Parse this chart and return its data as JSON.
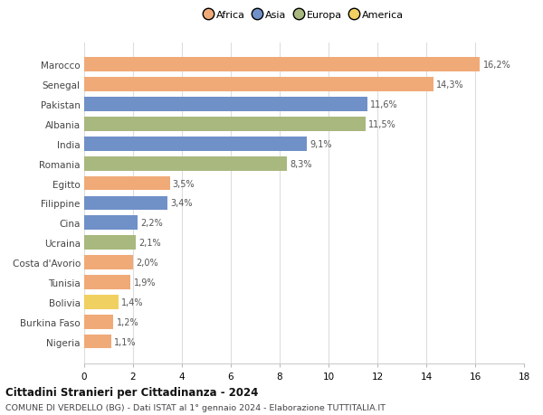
{
  "countries": [
    "Marocco",
    "Senegal",
    "Pakistan",
    "Albania",
    "India",
    "Romania",
    "Egitto",
    "Filippine",
    "Cina",
    "Ucraina",
    "Costa d'Avorio",
    "Tunisia",
    "Bolivia",
    "Burkina Faso",
    "Nigeria"
  ],
  "values": [
    16.2,
    14.3,
    11.6,
    11.5,
    9.1,
    8.3,
    3.5,
    3.4,
    2.2,
    2.1,
    2.0,
    1.9,
    1.4,
    1.2,
    1.1
  ],
  "labels": [
    "16,2%",
    "14,3%",
    "11,6%",
    "11,5%",
    "9,1%",
    "8,3%",
    "3,5%",
    "3,4%",
    "2,2%",
    "2,1%",
    "2,0%",
    "1,9%",
    "1,4%",
    "1,2%",
    "1,1%"
  ],
  "continents": [
    "Africa",
    "Africa",
    "Asia",
    "Europa",
    "Asia",
    "Europa",
    "Africa",
    "Asia",
    "Asia",
    "Europa",
    "Africa",
    "Africa",
    "America",
    "Africa",
    "Africa"
  ],
  "continent_colors": {
    "Africa": "#f0aa78",
    "Asia": "#7090c8",
    "Europa": "#a8b87e",
    "America": "#f0d060"
  },
  "legend_labels": [
    "Africa",
    "Asia",
    "Europa",
    "America"
  ],
  "legend_colors": [
    "#f0aa78",
    "#7090c8",
    "#a8b87e",
    "#f0d060"
  ],
  "title": "Cittadini Stranieri per Cittadinanza - 2024",
  "subtitle": "COMUNE DI VERDELLO (BG) - Dati ISTAT al 1° gennaio 2024 - Elaborazione TUTTITALIA.IT",
  "xlim": [
    0,
    18
  ],
  "xticks": [
    0,
    2,
    4,
    6,
    8,
    10,
    12,
    14,
    16,
    18
  ],
  "background_color": "#ffffff",
  "grid_color": "#dddddd"
}
